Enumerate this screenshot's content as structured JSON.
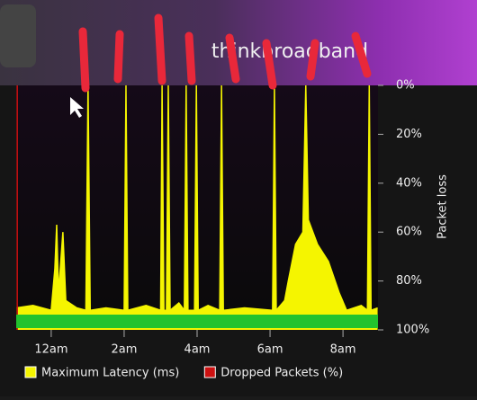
{
  "logo": "thinkbroadband",
  "chart_data": {
    "type": "area",
    "y_label": "Packet loss",
    "xlim": [
      -0.96,
      8.96
    ],
    "xticks": [
      {
        "value": 0,
        "label": "12am"
      },
      {
        "value": 2,
        "label": "2am"
      },
      {
        "value": 4,
        "label": "4am"
      },
      {
        "value": 6,
        "label": "6am"
      },
      {
        "value": 8,
        "label": "8am"
      }
    ],
    "ylim": [
      100,
      0
    ],
    "yticks": [
      {
        "value": 0,
        "label": "0%"
      },
      {
        "value": 20,
        "label": "20%"
      },
      {
        "value": 40,
        "label": "40%"
      },
      {
        "value": 60,
        "label": "60%"
      },
      {
        "value": 80,
        "label": "80%"
      },
      {
        "value": 100,
        "label": "100%"
      }
    ],
    "x": [
      -0.95,
      -0.5,
      0.0,
      0.1,
      0.15,
      0.2,
      0.32,
      0.4,
      0.7,
      0.95,
      1.01,
      1.07,
      1.5,
      2.0,
      2.05,
      2.1,
      2.6,
      3.0,
      3.04,
      3.09,
      3.16,
      3.21,
      3.26,
      3.5,
      3.65,
      3.7,
      3.75,
      3.93,
      3.98,
      4.03,
      4.3,
      4.62,
      4.67,
      4.72,
      5.3,
      6.07,
      6.12,
      6.17,
      6.4,
      6.5,
      6.7,
      6.9,
      6.98,
      7.05,
      7.3,
      7.6,
      7.9,
      8.1,
      8.5,
      8.67,
      8.72,
      8.77,
      8.95
    ],
    "series": [
      {
        "name": "Maximum Latency (ms)",
        "color": "#f5f500",
        "values": [
          91,
          90,
          92,
          75,
          57,
          85,
          60,
          88,
          91,
          92,
          0,
          92,
          91,
          92,
          0,
          92,
          90,
          92,
          0,
          92,
          92,
          0,
          92,
          89,
          92,
          0,
          92,
          92,
          0,
          92,
          90,
          92,
          0,
          92,
          91,
          92,
          0,
          92,
          88,
          80,
          65,
          60,
          0,
          55,
          65,
          72,
          85,
          92,
          90,
          92,
          0,
          92,
          91
        ]
      },
      {
        "name": "Dropped Packets (%)",
        "color": "#cc1111",
        "values": [
          100,
          0,
          0,
          0,
          0,
          0,
          0,
          0,
          0,
          0,
          0,
          0,
          0,
          0,
          0,
          0,
          0,
          0,
          0,
          0,
          0,
          0,
          0,
          0,
          0,
          0,
          0,
          0,
          0,
          0,
          0,
          0,
          0,
          0,
          0,
          0,
          0,
          0,
          0,
          0,
          0,
          0,
          0,
          0,
          0,
          0,
          0,
          0,
          0,
          0,
          0,
          0,
          0
        ]
      }
    ]
  }
}
